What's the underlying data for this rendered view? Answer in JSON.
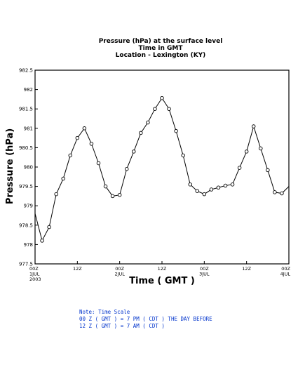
{
  "colors": {
    "axis": "#000000",
    "line": "#000000",
    "note": "#0033cc",
    "background": "#ffffff"
  },
  "chart_data": {
    "type": "line",
    "title_lines": [
      "Pressure (hPa) at the surface level",
      "Time in GMT",
      "Location - Lexington (KY)"
    ],
    "xlabel": "Time ( GMT )",
    "ylabel": "Pressure (hPa)",
    "ylim": [
      977.5,
      982.5
    ],
    "yticks": [
      977.5,
      978,
      978.5,
      979,
      979.5,
      980,
      980.5,
      981,
      981.5,
      982,
      982.5
    ],
    "ytick_labels": [
      "977.5",
      "978",
      "978.5",
      "979",
      "979.5",
      "980",
      "980.5",
      "981",
      "981.5",
      "982",
      "982.5"
    ],
    "xlim_hours": [
      0,
      72
    ],
    "xticks": [
      {
        "hour": 0,
        "lines": [
          "00Z",
          "1JUL",
          "2003"
        ]
      },
      {
        "hour": 12,
        "lines": [
          "12Z"
        ]
      },
      {
        "hour": 24,
        "lines": [
          "00Z",
          "2JUL"
        ]
      },
      {
        "hour": 36,
        "lines": [
          "12Z"
        ]
      },
      {
        "hour": 48,
        "lines": [
          "00Z",
          "3JUL"
        ]
      },
      {
        "hour": 60,
        "lines": [
          "12Z"
        ]
      },
      {
        "hour": 72,
        "lines": [
          "00Z",
          "4JUL"
        ]
      }
    ],
    "grid": false,
    "series": [
      {
        "x_hours": [
          0,
          2,
          4,
          6,
          8,
          10,
          12,
          14,
          16,
          18,
          20,
          22,
          24,
          26,
          28,
          30,
          32,
          34,
          36,
          38,
          40,
          42,
          44,
          46,
          48,
          50,
          52,
          54,
          56,
          58,
          60,
          62,
          64,
          66,
          68,
          70,
          72
        ],
        "values": [
          978.8,
          978.1,
          978.45,
          979.3,
          979.7,
          980.3,
          980.75,
          981.0,
          980.6,
          980.1,
          979.5,
          979.25,
          979.28,
          979.95,
          980.4,
          980.88,
          981.15,
          981.5,
          981.78,
          981.5,
          980.93,
          980.3,
          979.55,
          979.38,
          979.3,
          979.42,
          979.47,
          979.52,
          979.55,
          979.98,
          980.4,
          981.05,
          980.48,
          979.92,
          979.35,
          979.32,
          979.5
        ],
        "marker": "open-circle"
      }
    ]
  },
  "note": {
    "lines": [
      "Note: Time Scale",
      "00 Z ( GMT ) = 7 PM ( CDT ) THE DAY BEFORE",
      "12 Z ( GMT ) = 7 AM ( CDT )"
    ]
  }
}
